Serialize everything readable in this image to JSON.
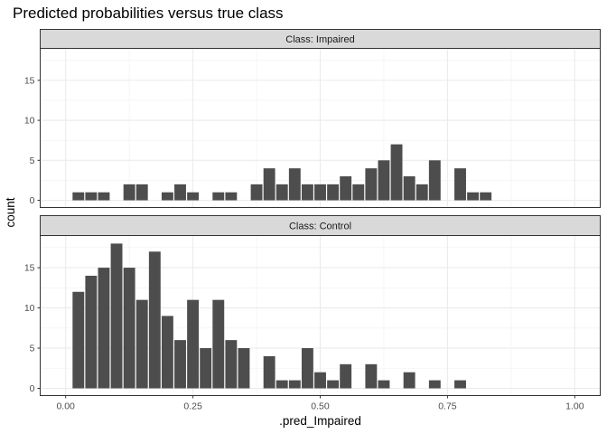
{
  "chart_data": {
    "type": "bar",
    "title": "Predicted probabilities versus true class",
    "xlabel": ".pred_Impaired",
    "ylabel": "count",
    "xlim": [
      -0.05,
      1.05
    ],
    "ylim": [
      -0.9,
      19
    ],
    "x_ticks": [
      0,
      0.25,
      0.5,
      0.75,
      1
    ],
    "x_tick_labels": [
      "0.00",
      "0.25",
      "0.50",
      "0.75",
      "1.00"
    ],
    "y_ticks": [
      0,
      5,
      10,
      15
    ],
    "y_tick_labels": [
      "0",
      "5",
      "10",
      "15"
    ],
    "bin_width": 0.025,
    "bar_color": "#4d4d4d",
    "grid": true,
    "facets": [
      {
        "label": "Class: Impaired",
        "bins": [
          {
            "x": 0.025,
            "count": 1
          },
          {
            "x": 0.05,
            "count": 1
          },
          {
            "x": 0.075,
            "count": 1
          },
          {
            "x": 0.125,
            "count": 2
          },
          {
            "x": 0.15,
            "count": 2
          },
          {
            "x": 0.2,
            "count": 1
          },
          {
            "x": 0.225,
            "count": 2
          },
          {
            "x": 0.25,
            "count": 1
          },
          {
            "x": 0.3,
            "count": 1
          },
          {
            "x": 0.325,
            "count": 1
          },
          {
            "x": 0.375,
            "count": 2
          },
          {
            "x": 0.4,
            "count": 4
          },
          {
            "x": 0.425,
            "count": 2
          },
          {
            "x": 0.45,
            "count": 4
          },
          {
            "x": 0.475,
            "count": 2
          },
          {
            "x": 0.5,
            "count": 2
          },
          {
            "x": 0.525,
            "count": 2
          },
          {
            "x": 0.55,
            "count": 3
          },
          {
            "x": 0.575,
            "count": 2
          },
          {
            "x": 0.6,
            "count": 4
          },
          {
            "x": 0.625,
            "count": 5
          },
          {
            "x": 0.65,
            "count": 7
          },
          {
            "x": 0.675,
            "count": 3
          },
          {
            "x": 0.7,
            "count": 2
          },
          {
            "x": 0.725,
            "count": 5
          },
          {
            "x": 0.775,
            "count": 4
          },
          {
            "x": 0.8,
            "count": 1
          },
          {
            "x": 0.825,
            "count": 1
          }
        ]
      },
      {
        "label": "Class: Control",
        "bins": [
          {
            "x": 0.025,
            "count": 12
          },
          {
            "x": 0.05,
            "count": 14
          },
          {
            "x": 0.075,
            "count": 15
          },
          {
            "x": 0.1,
            "count": 18
          },
          {
            "x": 0.125,
            "count": 15
          },
          {
            "x": 0.15,
            "count": 11
          },
          {
            "x": 0.175,
            "count": 17
          },
          {
            "x": 0.2,
            "count": 9
          },
          {
            "x": 0.225,
            "count": 6
          },
          {
            "x": 0.25,
            "count": 11
          },
          {
            "x": 0.275,
            "count": 5
          },
          {
            "x": 0.3,
            "count": 11
          },
          {
            "x": 0.325,
            "count": 6
          },
          {
            "x": 0.35,
            "count": 5
          },
          {
            "x": 0.4,
            "count": 4
          },
          {
            "x": 0.425,
            "count": 1
          },
          {
            "x": 0.45,
            "count": 1
          },
          {
            "x": 0.475,
            "count": 5
          },
          {
            "x": 0.5,
            "count": 2
          },
          {
            "x": 0.525,
            "count": 1
          },
          {
            "x": 0.55,
            "count": 3
          },
          {
            "x": 0.6,
            "count": 3
          },
          {
            "x": 0.625,
            "count": 1
          },
          {
            "x": 0.675,
            "count": 2
          },
          {
            "x": 0.725,
            "count": 1
          },
          {
            "x": 0.775,
            "count": 1
          }
        ]
      }
    ]
  }
}
